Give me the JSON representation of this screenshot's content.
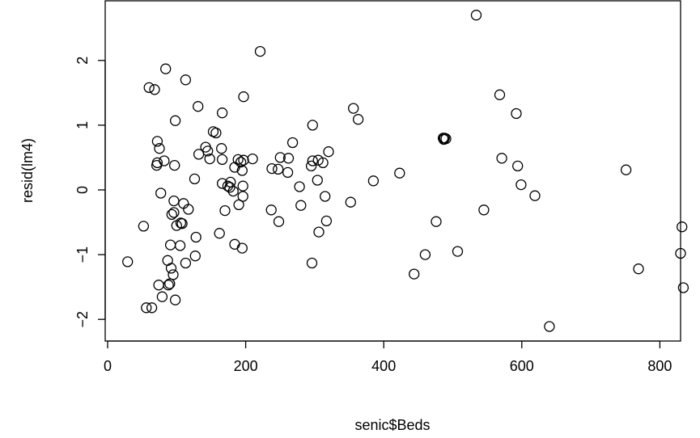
{
  "chart_data": {
    "type": "scatter",
    "title": "",
    "xlabel": "senic$Beds",
    "ylabel": "resid(lm4)",
    "xlim": [
      0,
      845
    ],
    "ylim": [
      -2.2,
      2.9
    ],
    "xticks": [
      0,
      200,
      400,
      600,
      800
    ],
    "xtick_labels": [
      "0",
      "200",
      "400",
      "600",
      "800"
    ],
    "yticks": [
      -2,
      -1,
      0,
      1,
      2
    ],
    "ytick_labels": [
      "−2",
      "−1",
      "0",
      "1",
      "2"
    ],
    "grid": false,
    "legend": "none",
    "marker": "open-circle",
    "points": [
      [
        29,
        -1.11
      ],
      [
        52,
        -0.56
      ],
      [
        56,
        -1.82
      ],
      [
        60,
        1.58
      ],
      [
        64,
        -1.82
      ],
      [
        68,
        1.55
      ],
      [
        71,
        0.38
      ],
      [
        72,
        0.42
      ],
      [
        72,
        0.75
      ],
      [
        74,
        -1.47
      ],
      [
        75,
        0.64
      ],
      [
        77,
        -0.05
      ],
      [
        79,
        -1.65
      ],
      [
        82,
        0.45
      ],
      [
        84,
        1.87
      ],
      [
        87,
        -1.09
      ],
      [
        88,
        -1.47
      ],
      [
        90,
        -1.45
      ],
      [
        91,
        -0.85
      ],
      [
        92,
        -1.21
      ],
      [
        93,
        -0.38
      ],
      [
        95,
        -1.31
      ],
      [
        96,
        -0.35
      ],
      [
        96,
        -0.17
      ],
      [
        97,
        0.38
      ],
      [
        98,
        1.07
      ],
      [
        98,
        -1.7
      ],
      [
        100,
        -0.55
      ],
      [
        105,
        -0.86
      ],
      [
        106,
        -0.51
      ],
      [
        108,
        -0.52
      ],
      [
        110,
        -0.21
      ],
      [
        113,
        -1.13
      ],
      [
        113,
        1.7
      ],
      [
        117,
        -0.3
      ],
      [
        126,
        0.17
      ],
      [
        127,
        -1.02
      ],
      [
        128,
        -0.73
      ],
      [
        131,
        1.29
      ],
      [
        132,
        0.55
      ],
      [
        142,
        0.66
      ],
      [
        145,
        0.6
      ],
      [
        148,
        0.48
      ],
      [
        153,
        0.9
      ],
      [
        157,
        0.88
      ],
      [
        162,
        -0.67
      ],
      [
        165,
        0.64
      ],
      [
        166,
        0.1
      ],
      [
        166,
        1.19
      ],
      [
        166,
        0.47
      ],
      [
        170,
        -0.32
      ],
      [
        174,
        0.06
      ],
      [
        177,
        0.04
      ],
      [
        178,
        0.12
      ],
      [
        182,
        -0.02
      ],
      [
        184,
        0.35
      ],
      [
        184,
        -0.84
      ],
      [
        189,
        0.47
      ],
      [
        190,
        -0.23
      ],
      [
        193,
        0.43
      ],
      [
        195,
        -0.9
      ],
      [
        195,
        0.3
      ],
      [
        196,
        0.06
      ],
      [
        196,
        -0.1
      ],
      [
        197,
        0.46
      ],
      [
        197,
        1.44
      ],
      [
        210,
        0.48
      ],
      [
        221,
        2.14
      ],
      [
        237,
        -0.31
      ],
      [
        238,
        0.33
      ],
      [
        247,
        0.32
      ],
      [
        248,
        -0.49
      ],
      [
        250,
        0.5
      ],
      [
        261,
        0.27
      ],
      [
        262,
        0.49
      ],
      [
        268,
        0.73
      ],
      [
        278,
        0.05
      ],
      [
        280,
        -0.24
      ],
      [
        295,
        0.37
      ],
      [
        296,
        -1.13
      ],
      [
        297,
        1.0
      ],
      [
        297,
        0.45
      ],
      [
        304,
        0.15
      ],
      [
        305,
        0.46
      ],
      [
        306,
        -0.65
      ],
      [
        312,
        0.42
      ],
      [
        315,
        -0.1
      ],
      [
        317,
        -0.48
      ],
      [
        320,
        0.59
      ],
      [
        352,
        -0.19
      ],
      [
        356,
        1.26
      ],
      [
        363,
        1.09
      ],
      [
        385,
        0.14
      ],
      [
        423,
        0.26
      ],
      [
        444,
        -1.3
      ],
      [
        460,
        -1.0
      ],
      [
        476,
        -0.49
      ],
      [
        486,
        0.8
      ],
      [
        487,
        0.78
      ],
      [
        488,
        0.8
      ],
      [
        490,
        0.79
      ],
      [
        507,
        -0.95
      ],
      [
        534,
        2.7
      ],
      [
        545,
        -0.31
      ],
      [
        568,
        1.47
      ],
      [
        571,
        0.49
      ],
      [
        592,
        1.18
      ],
      [
        594,
        0.37
      ],
      [
        599,
        0.08
      ],
      [
        619,
        -0.09
      ],
      [
        640,
        -2.11
      ],
      [
        751,
        0.31
      ],
      [
        769,
        -1.22
      ],
      [
        830,
        -0.98
      ],
      [
        832,
        -0.57
      ],
      [
        834,
        -1.51
      ]
    ]
  }
}
